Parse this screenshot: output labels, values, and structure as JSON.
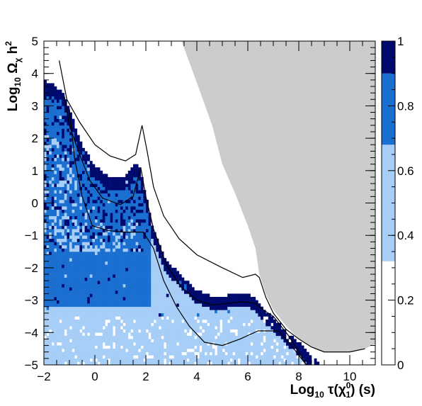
{
  "chart_data": {
    "type": "heatmap",
    "title": "",
    "xlabel": "Log10 τ(χ10) (s)",
    "ylabel": "Log10 Ωχ h2",
    "x_label_parts": {
      "pre": "Log",
      "sub": "10",
      "mid": " τ(χ",
      "sub2": "1",
      "sup2": "0",
      "post": ") (s)"
    },
    "y_label_parts": {
      "pre": "Log",
      "sub": "10",
      "mid": " Ω",
      "sub2": "χ",
      "post": " h",
      "sup2": "2"
    },
    "xlim": [
      -2,
      11
    ],
    "ylim": [
      -5,
      5
    ],
    "xticks": [
      -2,
      0,
      2,
      4,
      6,
      8,
      10
    ],
    "xtick_labels": [
      "−2",
      "0",
      "2",
      "4",
      "6",
      "8",
      "10"
    ],
    "yticks": [
      -5,
      -4,
      -3,
      -2,
      -1,
      0,
      1,
      2,
      3,
      4,
      5
    ],
    "ytick_labels": [
      "−5",
      "−4",
      "−3",
      "−2",
      "−1",
      "0",
      "1",
      "2",
      "3",
      "4",
      "5"
    ],
    "colorbar": {
      "range": [
        0,
        1
      ],
      "ticks": [
        0,
        0.2,
        0.4,
        0.6,
        0.8,
        1
      ],
      "tick_labels": [
        "0",
        "0.2",
        "0.4",
        "0.6",
        "0.8",
        "1"
      ],
      "bands": [
        {
          "from": 0.0,
          "to": 0.32,
          "color": "#ffffff"
        },
        {
          "from": 0.32,
          "to": 0.68,
          "color": "#a6cef7"
        },
        {
          "from": 0.68,
          "to": 0.9,
          "color": "#1a6fd0"
        },
        {
          "from": 0.9,
          "to": 1.0,
          "color": "#000a6e"
        }
      ]
    },
    "excluded_region_color": "#cccccc",
    "excluded_region_boundary": [
      [
        -2,
        5
      ],
      [
        3.4,
        5
      ],
      [
        4.1,
        3.5
      ],
      [
        4.6,
        2.4
      ],
      [
        5.0,
        1.2
      ],
      [
        5.5,
        0.3
      ],
      [
        6.0,
        -0.7
      ],
      [
        6.3,
        -1.4
      ],
      [
        6.45,
        -2.2
      ],
      [
        6.7,
        -2.8
      ],
      [
        7.0,
        -3.3
      ],
      [
        7.5,
        -3.8
      ],
      [
        8.0,
        -4.2
      ],
      [
        8.5,
        -4.45
      ],
      [
        9.0,
        -4.6
      ],
      [
        10.0,
        -4.6
      ],
      [
        10.6,
        -4.5
      ],
      [
        11,
        -4.35
      ],
      [
        11,
        5
      ]
    ],
    "curves": [
      {
        "name": "",
        "points": [
          [
            -1.4,
            4.4
          ],
          [
            -1.1,
            3.2
          ],
          [
            -0.6,
            2.5
          ],
          [
            0,
            1.8
          ],
          [
            0.6,
            1.45
          ],
          [
            1.2,
            1.3
          ],
          [
            1.6,
            1.5
          ],
          [
            1.85,
            2.4
          ],
          [
            2.05,
            1.6
          ],
          [
            2.3,
            0.5
          ],
          [
            2.7,
            -0.4
          ],
          [
            3.3,
            -1.1
          ],
          [
            4.0,
            -1.6
          ],
          [
            5.0,
            -2.0
          ],
          [
            5.8,
            -2.3
          ],
          [
            6.3,
            -2.2
          ],
          [
            6.45,
            -2.3
          ],
          [
            6.7,
            -2.9
          ],
          [
            7.0,
            -3.4
          ],
          [
            7.5,
            -3.9
          ],
          [
            8.0,
            -4.2
          ],
          [
            8.5,
            -4.45
          ],
          [
            9.0,
            -4.6
          ],
          [
            10.0,
            -4.6
          ],
          [
            10.6,
            -4.5
          ]
        ]
      },
      {
        "name": "",
        "points": [
          [
            -1.2,
            3.3
          ],
          [
            -1.0,
            2.4
          ],
          [
            -0.6,
            1.5
          ],
          [
            -0.2,
            0.7
          ],
          [
            0.3,
            0.15
          ],
          [
            1.0,
            -0.05
          ],
          [
            1.5,
            0.2
          ],
          [
            1.8,
            1.1
          ],
          [
            2.0,
            0.2
          ],
          [
            2.3,
            -0.8
          ],
          [
            2.8,
            -1.9
          ],
          [
            3.4,
            -2.6
          ],
          [
            4.0,
            -3.0
          ],
          [
            4.6,
            -3.15
          ],
          [
            5.2,
            -3.1
          ],
          [
            5.8,
            -3.05
          ],
          [
            6.3,
            -3.1
          ],
          [
            6.6,
            -3.3
          ],
          [
            7.0,
            -3.5
          ],
          [
            7.6,
            -4.1
          ],
          [
            8.0,
            -4.6
          ],
          [
            8.3,
            -5.0
          ]
        ]
      },
      {
        "name": "",
        "points": [
          [
            -1.0,
            2.9
          ],
          [
            -0.8,
            1.4
          ],
          [
            -0.5,
            0.2
          ],
          [
            -0.1,
            -0.7
          ],
          [
            0.5,
            -0.85
          ],
          [
            1.2,
            -0.9
          ],
          [
            1.9,
            -0.9
          ],
          [
            2.3,
            -1.4
          ],
          [
            2.7,
            -2.4
          ],
          [
            3.2,
            -3.2
          ],
          [
            3.7,
            -3.8
          ],
          [
            4.3,
            -4.3
          ],
          [
            5.0,
            -4.4
          ],
          [
            5.7,
            -4.2
          ],
          [
            6.4,
            -3.95
          ],
          [
            7.2,
            -3.95
          ],
          [
            7.6,
            -4.3
          ],
          [
            8.0,
            -4.7
          ],
          [
            8.3,
            -5.0
          ]
        ]
      }
    ]
  }
}
